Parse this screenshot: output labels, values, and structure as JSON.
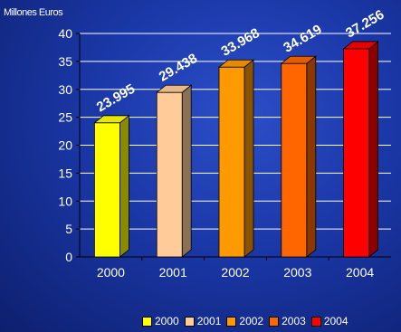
{
  "chart_data": {
    "type": "bar",
    "unit_label": "Millones Euros",
    "categories": [
      "2000",
      "2001",
      "2002",
      "2003",
      "2004"
    ],
    "values": [
      23.995,
      29.438,
      33.968,
      34.619,
      37.256
    ],
    "data_labels": [
      "23.995",
      "29.438",
      "33.968",
      "34.619",
      "37.256"
    ],
    "series": [
      {
        "name": "2000",
        "value": 23.995,
        "color": "#ffff00",
        "dark": "#8a8a00",
        "top": "#e6e600"
      },
      {
        "name": "2001",
        "value": 29.438,
        "color": "#ffcc99",
        "dark": "#8a7057",
        "top": "#e6b88a"
      },
      {
        "name": "2002",
        "value": 33.968,
        "color": "#ff9900",
        "dark": "#8a5300",
        "top": "#e68a00"
      },
      {
        "name": "2003",
        "value": 34.619,
        "color": "#ff6600",
        "dark": "#8a3700",
        "top": "#e65c00"
      },
      {
        "name": "2004",
        "value": 37.256,
        "color": "#ff0000",
        "dark": "#8a0000",
        "top": "#e60000"
      }
    ],
    "ylim": [
      0,
      40
    ],
    "yticks": [
      "0",
      "5",
      "10",
      "15",
      "20",
      "25",
      "30",
      "35",
      "40"
    ],
    "grid": true,
    "legend_position": "bottom-right"
  }
}
